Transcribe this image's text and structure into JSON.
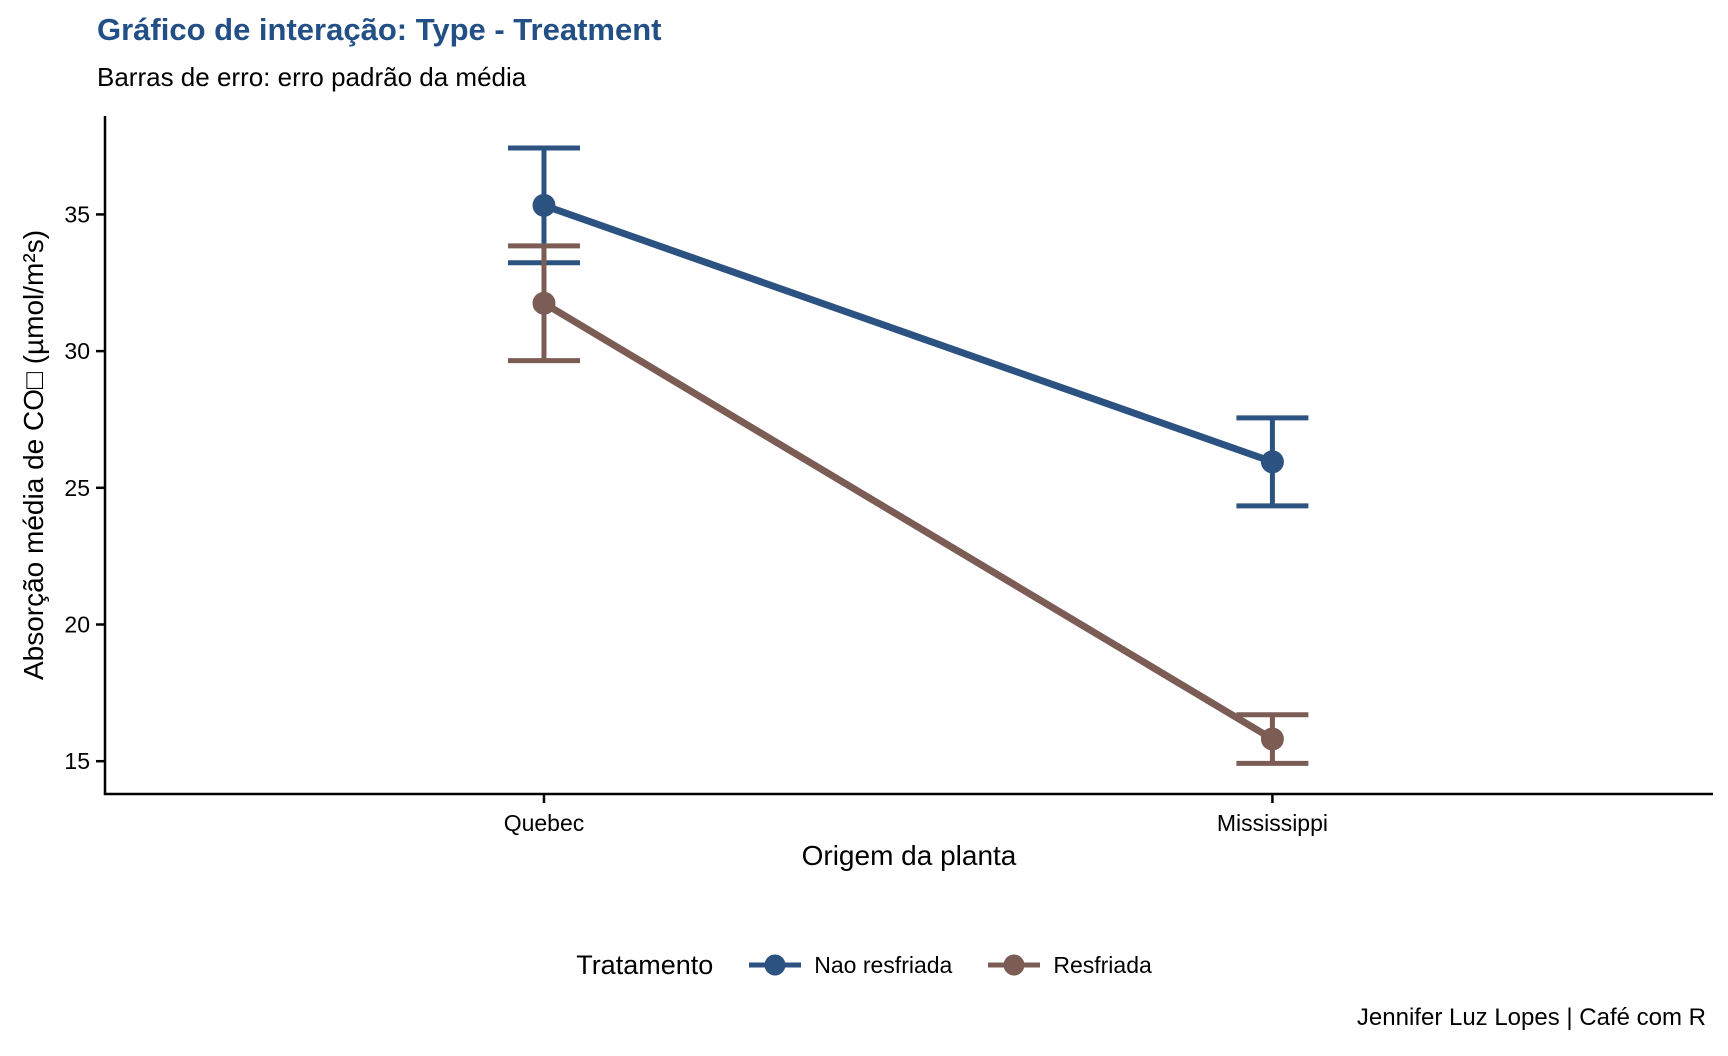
{
  "colors": {
    "title_blue": "#224F86",
    "series_blue": "#2B5280",
    "series_brown": "#7C5D55",
    "axis_black": "#000000"
  },
  "chart_data": {
    "type": "line",
    "title": "Gráfico de interação: Type - Treatment",
    "subtitle": "Barras de erro: erro padrão da média",
    "caption": "Jennifer Luz Lopes | Café com R",
    "xlabel": "Origem da planta",
    "ylabel": "Absorção média de CO□ (µmol/m²s)",
    "legend_title": "Tratamento",
    "legend_position": "bottom",
    "grid": false,
    "error_bars": "standard error of mean",
    "categories": [
      "Quebec",
      "Mississippi"
    ],
    "yticks": [
      15,
      20,
      25,
      30,
      35
    ],
    "ylim": [
      13.8,
      38.6
    ],
    "series": [
      {
        "name": "Nao resfriada",
        "color": "#2B5280",
        "values": [
          35.33,
          25.95
        ],
        "se": [
          2.1,
          1.61
        ]
      },
      {
        "name": "Resfriada",
        "color": "#7C5D55",
        "values": [
          31.75,
          15.81
        ],
        "se": [
          2.1,
          0.89
        ]
      }
    ]
  }
}
